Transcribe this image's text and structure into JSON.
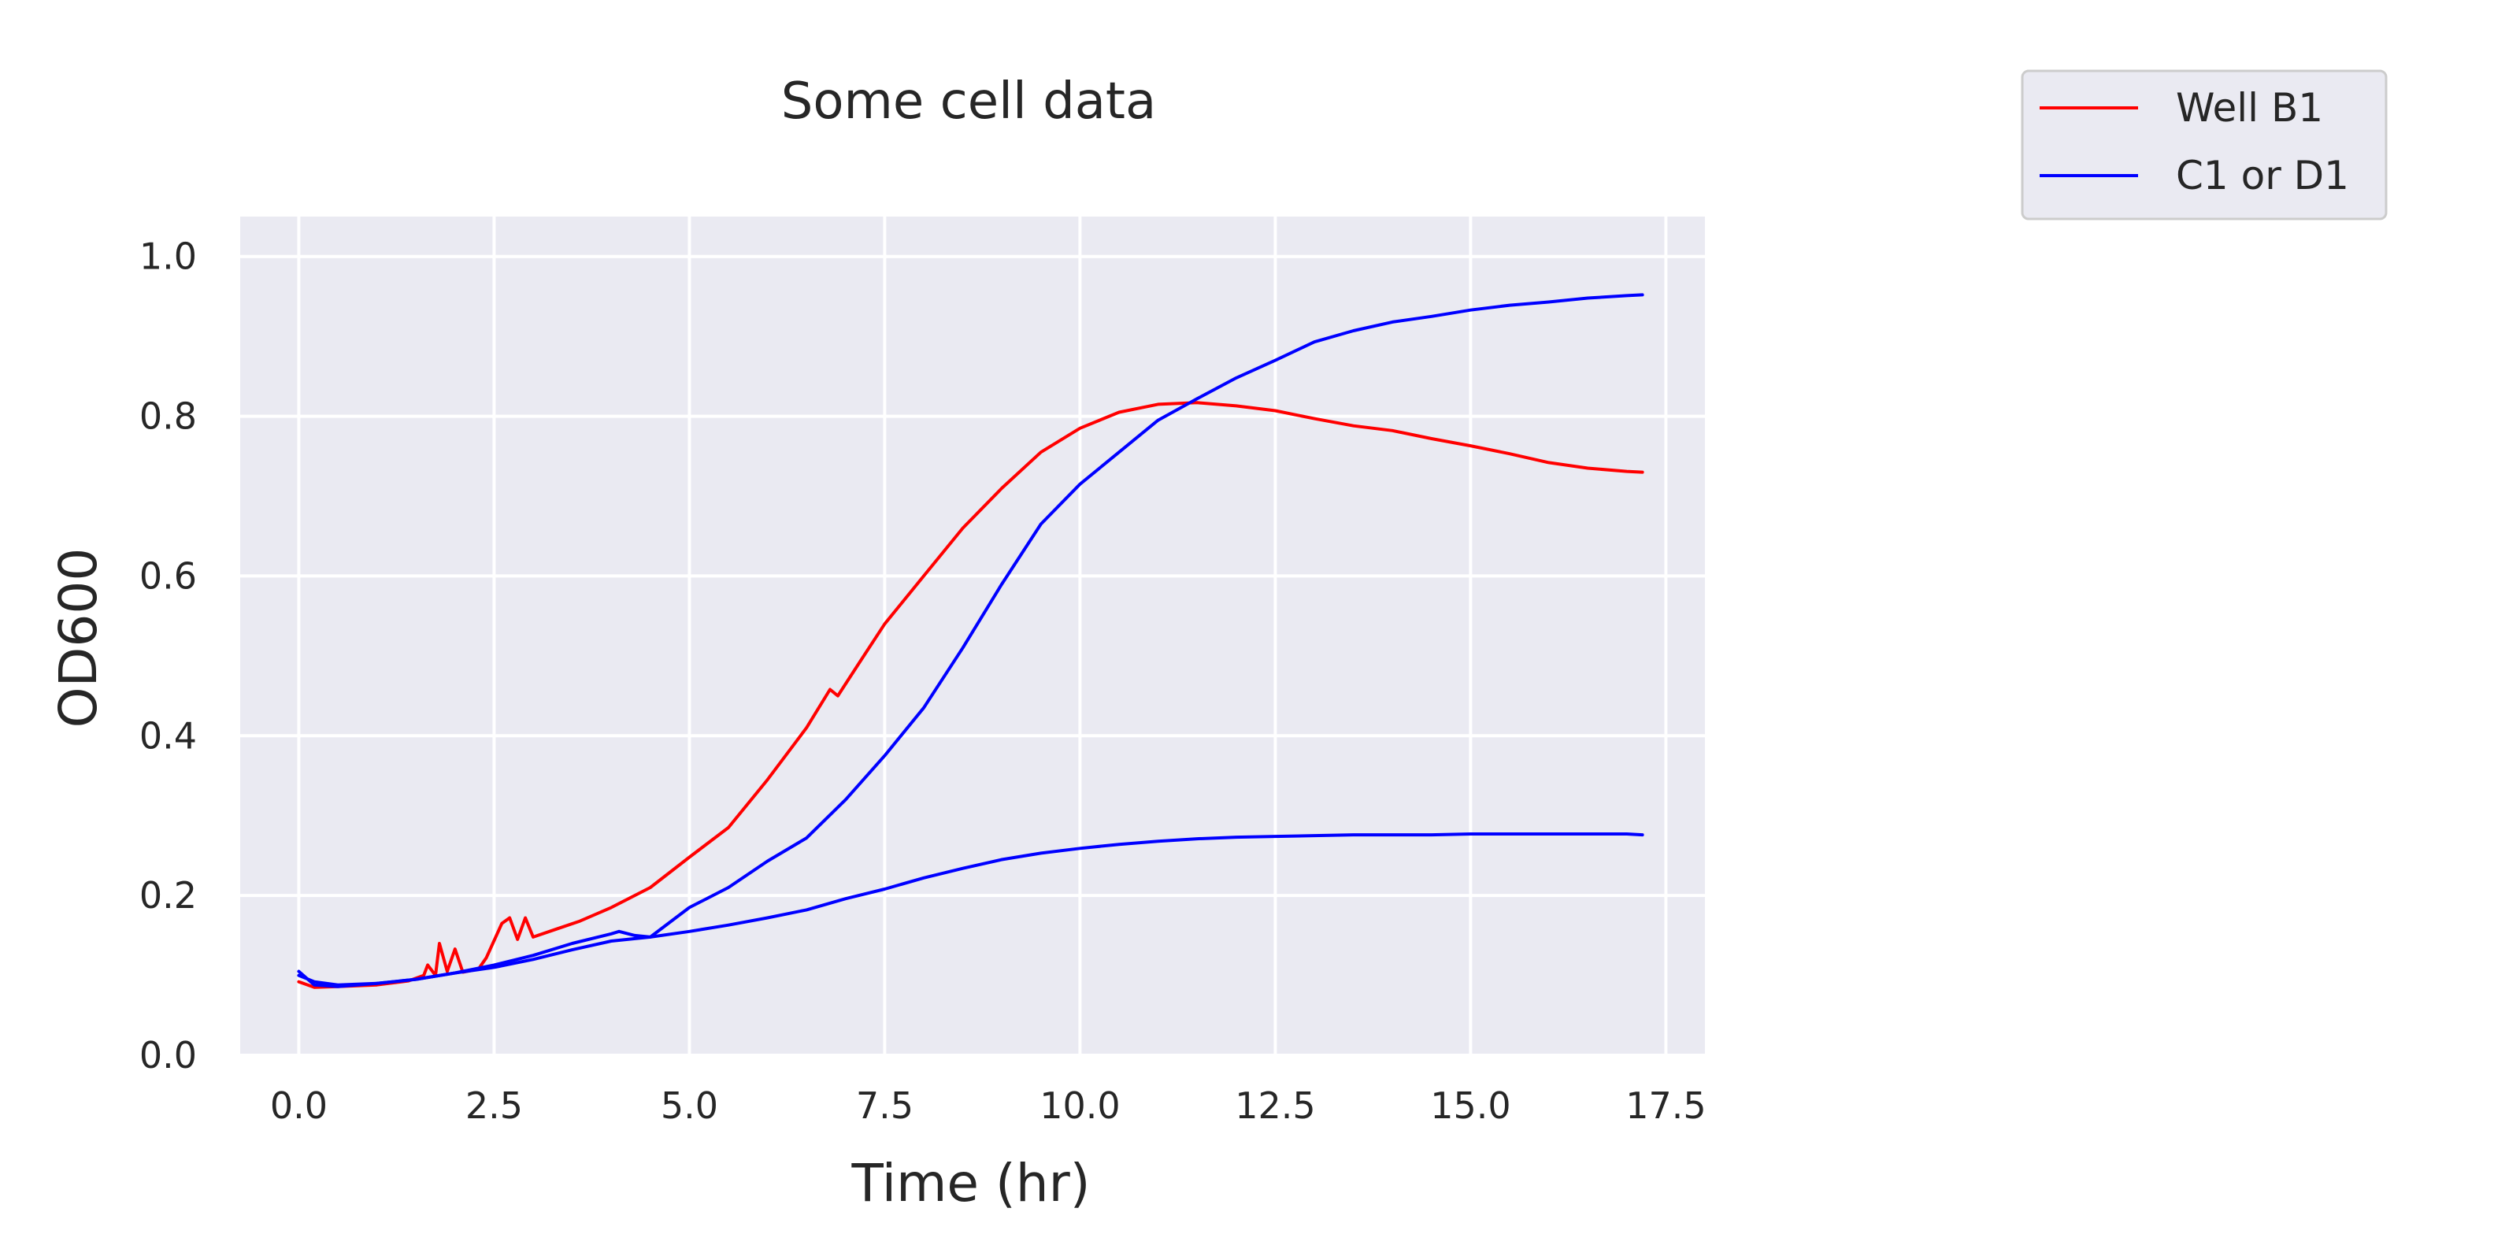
{
  "chart_data": {
    "type": "line",
    "title": "Some cell data",
    "xlabel": "Time (hr)",
    "ylabel": "OD600",
    "xlim": [
      -0.75,
      18.0
    ],
    "ylim": [
      0.0,
      1.05
    ],
    "xticks": [
      0.0,
      2.5,
      5.0,
      7.5,
      10.0,
      12.5,
      15.0,
      17.5
    ],
    "xtick_labels": [
      "0.0",
      "2.5",
      "5.0",
      "7.5",
      "10.0",
      "12.5",
      "15.0",
      "17.5"
    ],
    "yticks": [
      0.0,
      0.2,
      0.4,
      0.6,
      0.8,
      1.0
    ],
    "ytick_labels": [
      "0.0",
      "0.2",
      "0.4",
      "0.6",
      "0.8",
      "1.0"
    ],
    "grid": true,
    "legend_position": "outside-top-right",
    "background_color": "#eaeaf2",
    "grid_color": "#ffffff",
    "legend": [
      {
        "label": "Well B1",
        "color": "#ff0000"
      },
      {
        "label": "C1 or D1",
        "color": "#0000ff"
      }
    ],
    "series": [
      {
        "color": "#ff0000",
        "points": [
          [
            0.0,
            0.092
          ],
          [
            0.2,
            0.085
          ],
          [
            0.5,
            0.086
          ],
          [
            1.0,
            0.088
          ],
          [
            1.4,
            0.093
          ],
          [
            1.6,
            0.1
          ],
          [
            1.65,
            0.113
          ],
          [
            1.75,
            0.1
          ],
          [
            1.8,
            0.14
          ],
          [
            1.9,
            0.105
          ],
          [
            2.0,
            0.133
          ],
          [
            2.1,
            0.104
          ],
          [
            2.3,
            0.108
          ],
          [
            2.4,
            0.122
          ],
          [
            2.6,
            0.165
          ],
          [
            2.7,
            0.172
          ],
          [
            2.8,
            0.145
          ],
          [
            2.9,
            0.172
          ],
          [
            3.0,
            0.148
          ],
          [
            3.3,
            0.158
          ],
          [
            3.6,
            0.168
          ],
          [
            4.0,
            0.185
          ],
          [
            4.5,
            0.21
          ],
          [
            5.0,
            0.248
          ],
          [
            5.5,
            0.285
          ],
          [
            6.0,
            0.345
          ],
          [
            6.5,
            0.41
          ],
          [
            6.8,
            0.458
          ],
          [
            6.9,
            0.45
          ],
          [
            7.2,
            0.495
          ],
          [
            7.5,
            0.54
          ],
          [
            8.0,
            0.6
          ],
          [
            8.5,
            0.66
          ],
          [
            9.0,
            0.71
          ],
          [
            9.5,
            0.755
          ],
          [
            10.0,
            0.785
          ],
          [
            10.5,
            0.805
          ],
          [
            11.0,
            0.815
          ],
          [
            11.5,
            0.817
          ],
          [
            12.0,
            0.813
          ],
          [
            12.5,
            0.807
          ],
          [
            13.0,
            0.797
          ],
          [
            13.5,
            0.788
          ],
          [
            14.0,
            0.782
          ],
          [
            14.5,
            0.772
          ],
          [
            15.0,
            0.763
          ],
          [
            15.5,
            0.753
          ],
          [
            16.0,
            0.742
          ],
          [
            16.5,
            0.735
          ],
          [
            17.0,
            0.731
          ],
          [
            17.2,
            0.73
          ]
        ]
      },
      {
        "color": "#0000ff",
        "points": [
          [
            0.0,
            0.105
          ],
          [
            0.2,
            0.088
          ],
          [
            0.5,
            0.086
          ],
          [
            1.0,
            0.09
          ],
          [
            1.5,
            0.095
          ],
          [
            2.0,
            0.103
          ],
          [
            2.5,
            0.113
          ],
          [
            3.0,
            0.125
          ],
          [
            3.5,
            0.14
          ],
          [
            4.0,
            0.152
          ],
          [
            4.1,
            0.155
          ],
          [
            4.3,
            0.15
          ],
          [
            4.5,
            0.148
          ],
          [
            5.0,
            0.185
          ],
          [
            5.5,
            0.21
          ],
          [
            6.0,
            0.243
          ],
          [
            6.5,
            0.272
          ],
          [
            7.0,
            0.32
          ],
          [
            7.5,
            0.375
          ],
          [
            8.0,
            0.435
          ],
          [
            8.5,
            0.51
          ],
          [
            9.0,
            0.59
          ],
          [
            9.5,
            0.665
          ],
          [
            10.0,
            0.715
          ],
          [
            10.5,
            0.755
          ],
          [
            11.0,
            0.795
          ],
          [
            11.5,
            0.822
          ],
          [
            12.0,
            0.848
          ],
          [
            12.5,
            0.87
          ],
          [
            13.0,
            0.893
          ],
          [
            13.5,
            0.907
          ],
          [
            14.0,
            0.918
          ],
          [
            14.5,
            0.925
          ],
          [
            15.0,
            0.933
          ],
          [
            15.5,
            0.939
          ],
          [
            16.0,
            0.943
          ],
          [
            16.5,
            0.948
          ],
          [
            17.0,
            0.951
          ],
          [
            17.2,
            0.952
          ]
        ]
      },
      {
        "color": "#0000ff",
        "points": [
          [
            0.0,
            0.1
          ],
          [
            0.2,
            0.092
          ],
          [
            0.5,
            0.088
          ],
          [
            1.0,
            0.09
          ],
          [
            1.5,
            0.095
          ],
          [
            2.0,
            0.103
          ],
          [
            2.5,
            0.11
          ],
          [
            3.0,
            0.12
          ],
          [
            3.5,
            0.132
          ],
          [
            4.0,
            0.143
          ],
          [
            4.5,
            0.148
          ],
          [
            5.0,
            0.155
          ],
          [
            5.5,
            0.163
          ],
          [
            6.0,
            0.172
          ],
          [
            6.5,
            0.182
          ],
          [
            7.0,
            0.196
          ],
          [
            7.5,
            0.208
          ],
          [
            8.0,
            0.222
          ],
          [
            8.5,
            0.234
          ],
          [
            9.0,
            0.245
          ],
          [
            9.5,
            0.253
          ],
          [
            10.0,
            0.259
          ],
          [
            10.5,
            0.264
          ],
          [
            11.0,
            0.268
          ],
          [
            11.5,
            0.271
          ],
          [
            12.0,
            0.273
          ],
          [
            12.5,
            0.274
          ],
          [
            13.0,
            0.275
          ],
          [
            13.5,
            0.276
          ],
          [
            14.0,
            0.276
          ],
          [
            14.5,
            0.276
          ],
          [
            15.0,
            0.277
          ],
          [
            15.5,
            0.277
          ],
          [
            16.0,
            0.277
          ],
          [
            16.5,
            0.277
          ],
          [
            17.0,
            0.277
          ],
          [
            17.2,
            0.276
          ]
        ]
      }
    ]
  }
}
